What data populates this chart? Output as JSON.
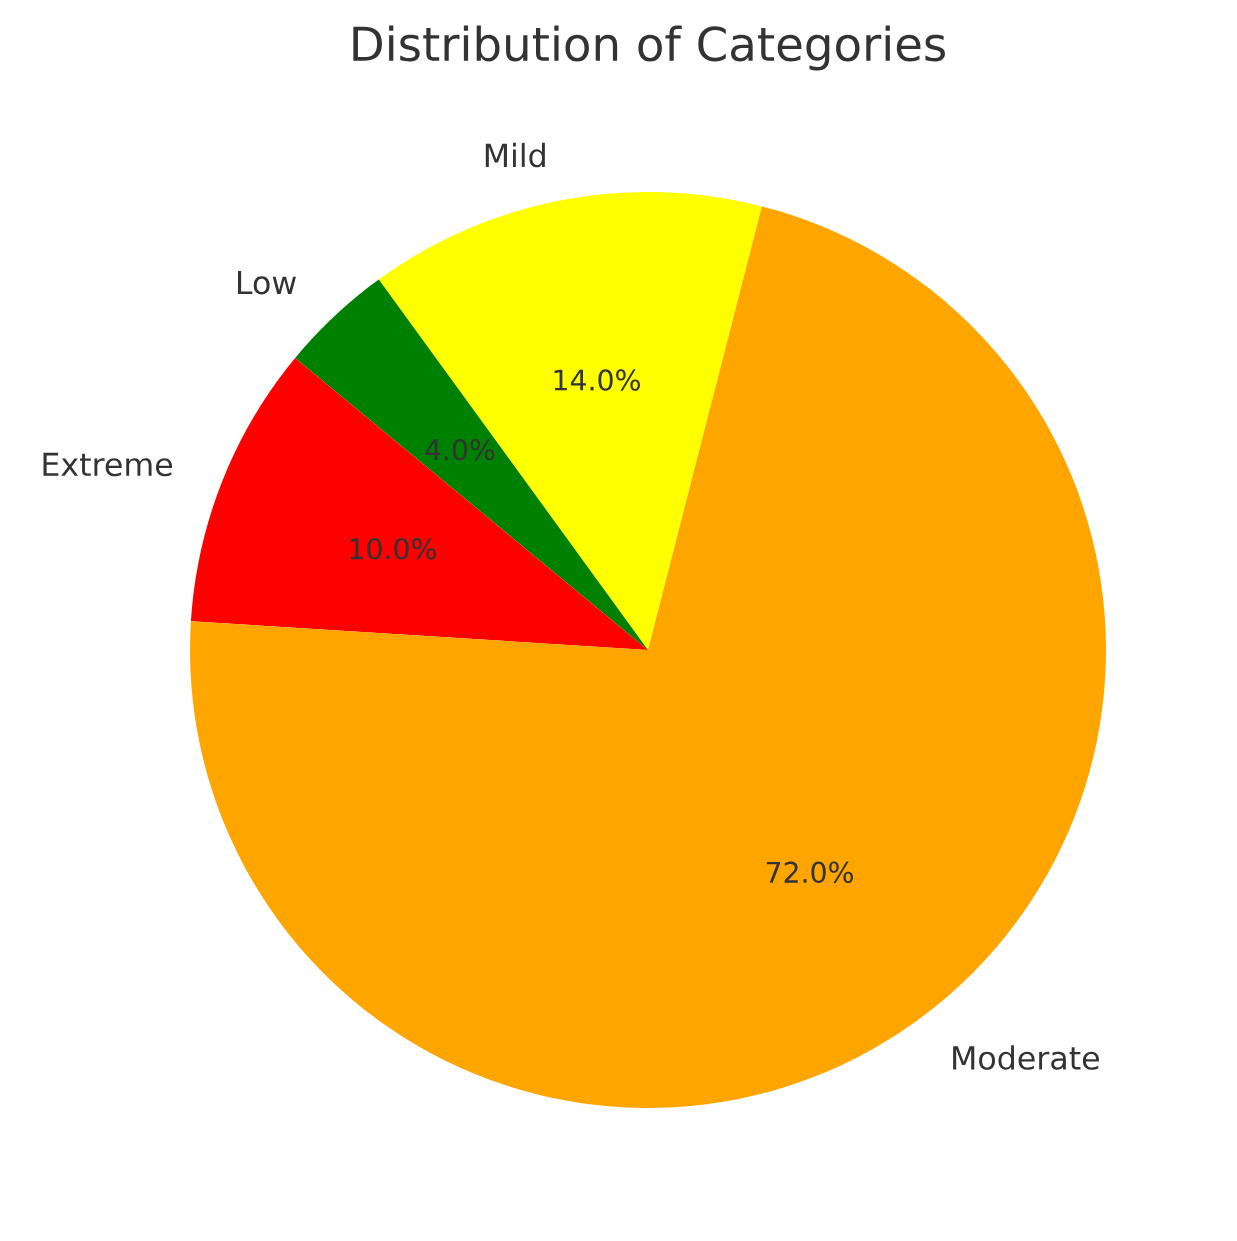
{
  "chart_data": {
    "type": "pie",
    "title": "Distribution of Categories",
    "categories": [
      "Mild",
      "Low",
      "Extreme",
      "Moderate"
    ],
    "values": [
      14,
      4,
      10,
      72
    ],
    "colors": [
      "#ffff00",
      "#008000",
      "#ff0000",
      "#ffa500"
    ],
    "value_labels": [
      "14.0%",
      "4.0%",
      "10.0%",
      "72.0%"
    ]
  }
}
